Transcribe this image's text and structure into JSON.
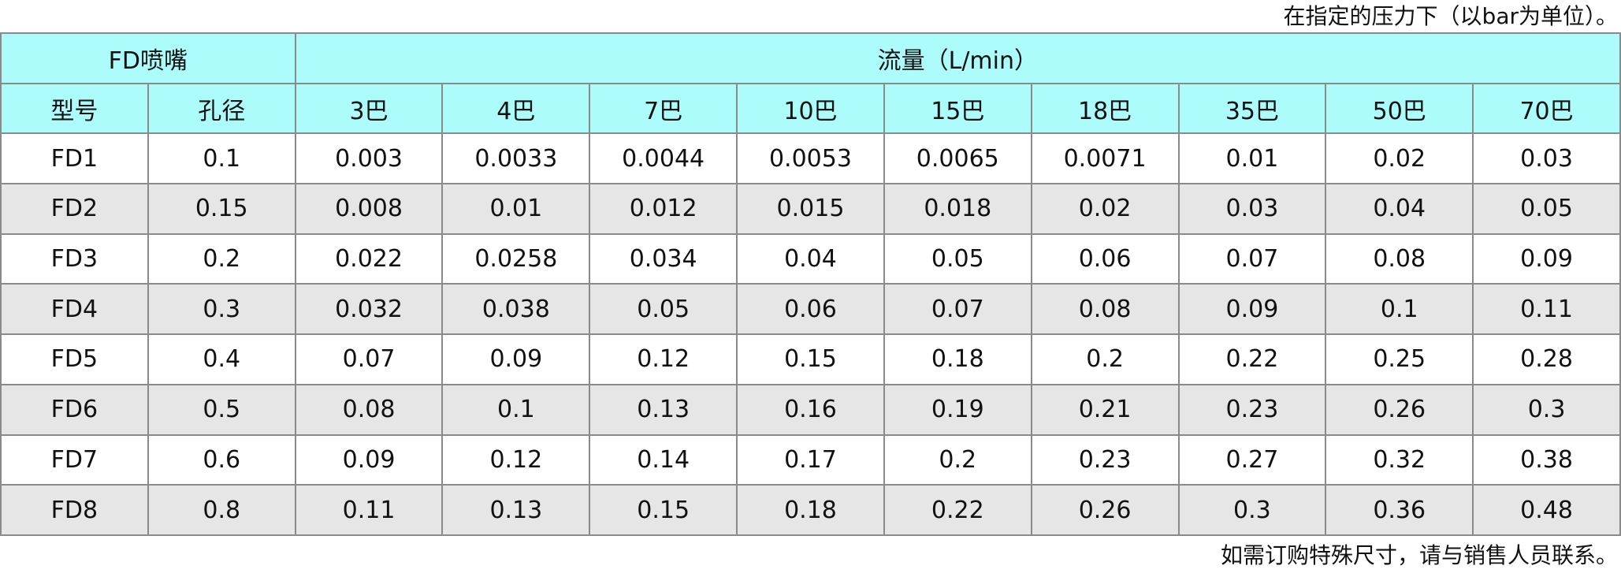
{
  "note_top": "在指定的压力下（以bar为单位）。",
  "table": {
    "group_headers": [
      "FD喷嘴",
      "流量（L/min）"
    ],
    "headers": [
      "型号",
      "孔径",
      "3巴",
      "4巴",
      "7巴",
      "10巴",
      "15巴",
      "18巴",
      "35巴",
      "50巴",
      "70巴"
    ],
    "rows": [
      [
        "FD1",
        "0.1",
        "0.003",
        "0.0033",
        "0.0044",
        "0.0053",
        "0.0065",
        "0.0071",
        "0.01",
        "0.02",
        "0.03"
      ],
      [
        "FD2",
        "0.15",
        "0.008",
        "0.01",
        "0.012",
        "0.015",
        "0.018",
        "0.02",
        "0.03",
        "0.04",
        "0.05"
      ],
      [
        "FD3",
        "0.2",
        "0.022",
        "0.0258",
        "0.034",
        "0.04",
        "0.05",
        "0.06",
        "0.07",
        "0.08",
        "0.09"
      ],
      [
        "FD4",
        "0.3",
        "0.032",
        "0.038",
        "0.05",
        "0.06",
        "0.07",
        "0.08",
        "0.09",
        "0.1",
        "0.11"
      ],
      [
        "FD5",
        "0.4",
        "0.07",
        "0.09",
        "0.12",
        "0.15",
        "0.18",
        "0.2",
        "0.22",
        "0.25",
        "0.28"
      ],
      [
        "FD6",
        "0.5",
        "0.08",
        "0.1",
        "0.13",
        "0.16",
        "0.19",
        "0.21",
        "0.23",
        "0.26",
        "0.3"
      ],
      [
        "FD7",
        "0.6",
        "0.09",
        "0.12",
        "0.14",
        "0.17",
        "0.2",
        "0.23",
        "0.27",
        "0.32",
        "0.38"
      ],
      [
        "FD8",
        "0.8",
        "0.11",
        "0.13",
        "0.15",
        "0.18",
        "0.22",
        "0.26",
        "0.3",
        "0.36",
        "0.48"
      ]
    ]
  },
  "note_bottom": "如需订购特殊尺寸，请与销售人员联系。"
}
